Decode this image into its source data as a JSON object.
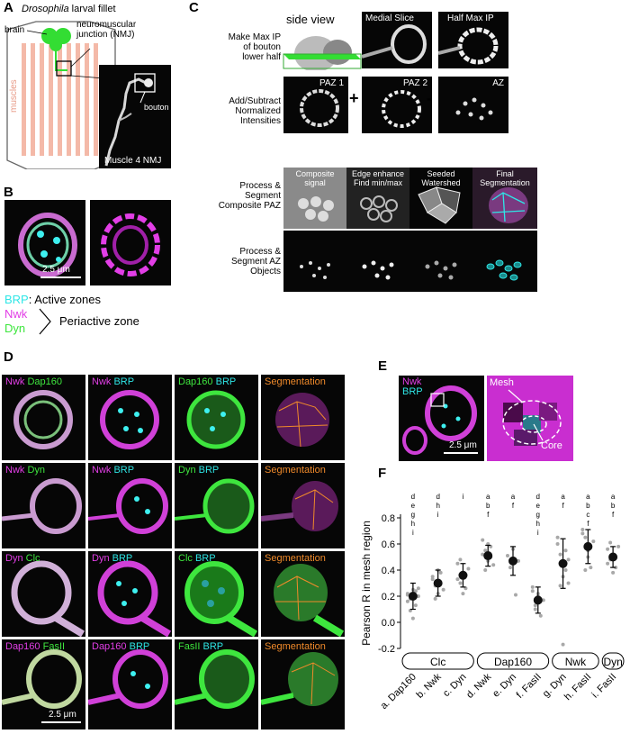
{
  "panels": {
    "A": "A",
    "B": "B",
    "C": "C",
    "D": "D",
    "E": "E",
    "F": "F"
  },
  "panel_a": {
    "title_italic": "Drosophila",
    "title_rest": " larval fillet",
    "brain": "brain",
    "nmj_line1": "neuromuscular",
    "nmj_line2": "junction (NMJ)",
    "muscles": "muscles",
    "bouton": "bouton",
    "muscle4": "Muscle 4 NMJ"
  },
  "panel_b": {
    "scale": "2.5 μm",
    "legend_brp": "BRP",
    "legend_brp_rest": ": Active zones",
    "legend_nwk": "Nwk",
    "legend_dyn": "Dyn",
    "legend_periactive": "Periactive zone"
  },
  "panel_c": {
    "step1_l1": "Make Max IP",
    "step1_l2": "of bouton",
    "step1_l3": "lower half",
    "side_view": "side view",
    "medial": "Medial Slice",
    "halfmax": "Half Max IP",
    "step2_l1": "Add/Subtract",
    "step2_l2": "Normalized",
    "step2_l3": "Intensities",
    "paz1": "PAZ 1",
    "paz2": "PAZ 2",
    "az": "AZ",
    "plus": "+",
    "minus": "-",
    "step3_l1": "Process &",
    "step3_l2": "Segment Composite PAZ",
    "step4_l1": "Process &",
    "step4_l2": "Segment AZ",
    "step4_l3": "Objects",
    "tile1_l1": "Composite",
    "tile1_l2": "signal",
    "tile2_l1": "Edge enhance",
    "tile2_l2": "Find min/max",
    "tile3_l1": "Seeded",
    "tile3_l2": "Watershed",
    "tile4_l1": "Final",
    "tile4_l2": "Segmentation"
  },
  "panel_d": {
    "rows": [
      {
        "c1a": "Nwk",
        "c1b": "Dap160",
        "c2a": "Nwk",
        "c2b": "BRP",
        "c3a": "Dap160",
        "c3b": "BRP",
        "c4": "Segmentation"
      },
      {
        "c1a": "Nwk",
        "c1b": "Dyn",
        "c2a": "Nwk",
        "c2b": "BRP",
        "c3a": "Dyn",
        "c3b": "BRP",
        "c4": "Segmentation"
      },
      {
        "c1a": "Dyn",
        "c1b": "Clc",
        "c2a": "Dyn",
        "c2b": "BRP",
        "c3a": "Clc",
        "c3b": "BRP",
        "c4": "Segmentation"
      },
      {
        "c1a": "Dap160",
        "c1b": "FasII",
        "c2a": "Dap160",
        "c2b": "BRP",
        "c3a": "FasII",
        "c3b": "BRP",
        "c4": "Segmentation"
      }
    ],
    "scale": "2.5 μm"
  },
  "panel_e": {
    "nwk": "Nwk",
    "brp": "BRP",
    "scale": "2.5 μm",
    "mesh": "Mesh",
    "core": "Core"
  },
  "colors": {
    "cyan": "#2ee6e6",
    "magenta": "#e23ee6",
    "green": "#3ee63e",
    "orange": "#f08a2a",
    "muscle": "#f4b9a8"
  },
  "chart_data": {
    "type": "scatter",
    "ylabel": "Pearson R in mesh region",
    "ylim": [
      -0.2,
      0.8
    ],
    "yticks": [
      "-0.2",
      "0.0",
      "0.2",
      "0.4",
      "0.6",
      "0.8"
    ],
    "categories": [
      "a. Dap160",
      "b. Nwk",
      "c. Dyn",
      "d. Nwk",
      "e. Dyn",
      "f. FasII",
      "g. Dyn",
      "h. FasII",
      "i. FasII"
    ],
    "groups": [
      {
        "name": "Clc",
        "span": [
          0,
          2
        ]
      },
      {
        "name": "Dap160",
        "span": [
          3,
          5
        ]
      },
      {
        "name": "Nwk",
        "span": [
          6,
          7
        ]
      },
      {
        "name": "Dyn",
        "span": [
          8,
          8
        ]
      }
    ],
    "means": [
      0.2,
      0.3,
      0.36,
      0.51,
      0.47,
      0.17,
      0.45,
      0.58,
      0.5
    ],
    "errors": [
      0.1,
      0.1,
      0.09,
      0.08,
      0.11,
      0.1,
      0.19,
      0.13,
      0.08
    ],
    "significance": [
      [
        "d",
        "e",
        "g",
        "h",
        "i"
      ],
      [
        "d",
        "h",
        "i"
      ],
      [
        "i"
      ],
      [
        "a",
        "b",
        "f"
      ],
      [
        "a",
        "f"
      ],
      [
        "d",
        "e",
        "g",
        "h",
        "i"
      ],
      [
        "a",
        "f"
      ],
      [
        "a",
        "b",
        "c",
        "f"
      ],
      [
        "a",
        "b",
        "f"
      ]
    ],
    "points": [
      [
        0.22,
        0.18,
        0.25,
        0.13,
        0.26,
        0.21,
        0.09,
        0.03,
        0.24,
        0.2,
        0.16
      ],
      [
        0.35,
        0.28,
        0.22,
        0.38,
        0.25,
        0.33,
        0.18,
        0.4
      ],
      [
        0.45,
        0.3,
        0.38,
        0.26,
        0.41,
        0.33,
        0.48,
        0.22,
        0.36
      ],
      [
        0.63,
        0.55,
        0.47,
        0.58,
        0.44,
        0.52,
        0.4,
        0.6,
        0.5
      ],
      [
        0.51,
        0.42,
        0.56,
        0.21,
        0.47
      ],
      [
        0.24,
        0.1,
        0.2,
        0.05,
        0.17,
        0.27,
        0.13,
        0.22
      ],
      [
        0.6,
        0.52,
        0.35,
        0.4,
        0.48,
        0.65,
        0.28,
        -0.17,
        0.55,
        0.3
      ],
      [
        0.71,
        0.65,
        0.55,
        0.42,
        0.62,
        0.68,
        0.4,
        0.5
      ],
      [
        0.56,
        0.48,
        0.52,
        0.42,
        0.58,
        0.45,
        0.61,
        0.38
      ]
    ]
  }
}
